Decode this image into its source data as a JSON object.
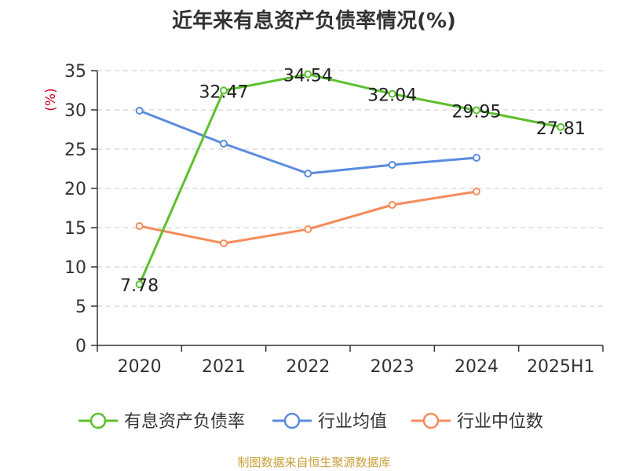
{
  "chart_data": {
    "type": "line",
    "title": "近年来有息资产负债率情况(%)",
    "ylabel": "(%)",
    "xlabel": "",
    "categories": [
      "2020",
      "2021",
      "2022",
      "2023",
      "2024",
      "2025H1"
    ],
    "ylim": [
      0,
      35
    ],
    "yticks": [
      "0",
      "5",
      "10",
      "15",
      "20",
      "25",
      "30",
      "35"
    ],
    "grid": true,
    "legend_position": "bottom",
    "series": [
      {
        "name": "有息资产负债率",
        "color": "#5cc02d",
        "values": [
          7.78,
          32.47,
          34.54,
          32.04,
          29.95,
          27.81
        ],
        "labels": [
          "7.78",
          "32.47",
          "34.54",
          "32.04",
          "29.95",
          "27.81"
        ]
      },
      {
        "name": "行业均值",
        "color": "#5a8be0",
        "values": [
          29.9,
          25.7,
          21.9,
          23.0,
          23.9,
          null
        ]
      },
      {
        "name": "行业中位数",
        "color": "#f58c5b",
        "values": [
          15.2,
          13.0,
          14.8,
          17.9,
          19.6,
          null
        ]
      }
    ]
  },
  "source": "制图数据来自恒生聚源数据库"
}
